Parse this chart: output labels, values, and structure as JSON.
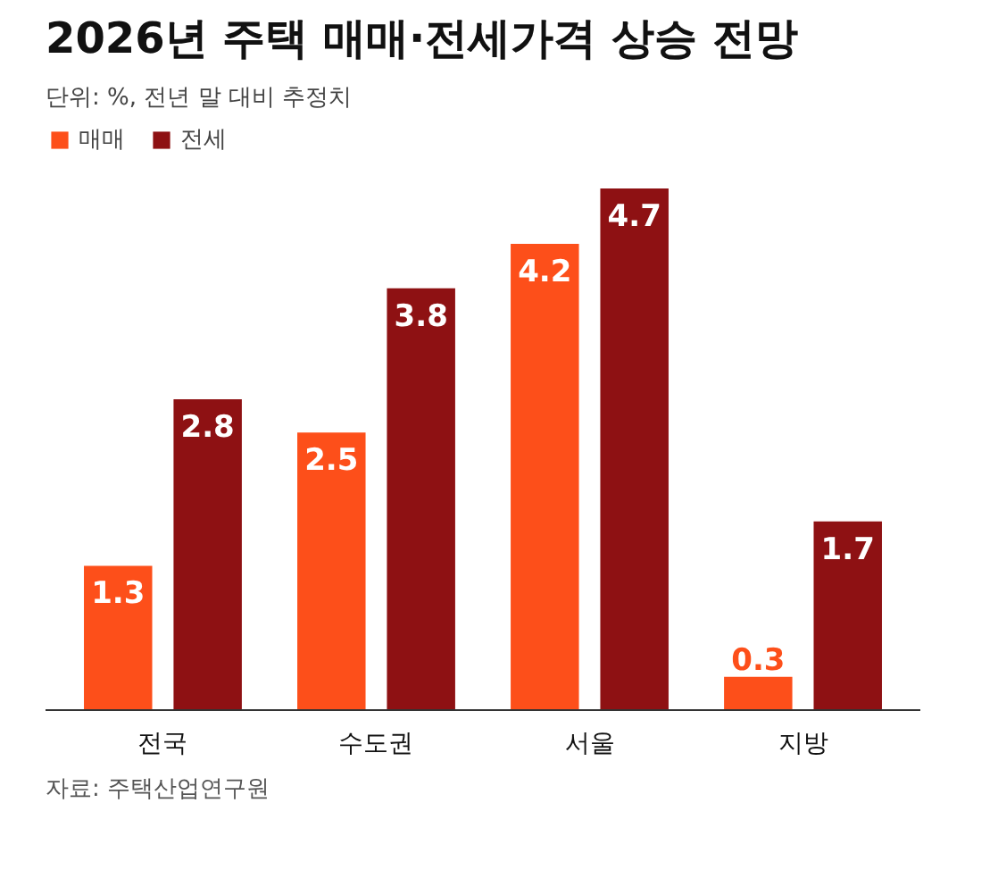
{
  "chart_data": {
    "type": "bar",
    "title": "2026년 주택 매매·전세가격 상승 전망",
    "subtitle": "단위: %, 전년 말 대비 추정치",
    "categories": [
      "전국",
      "수도권",
      "서울",
      "지방"
    ],
    "series": [
      {
        "name": "매매",
        "color": "#fd4f1a",
        "values": [
          1.3,
          2.5,
          4.2,
          0.3
        ]
      },
      {
        "name": "전세",
        "color": "#8e1113",
        "values": [
          2.8,
          3.8,
          4.7,
          1.7
        ]
      }
    ],
    "data_labels": true,
    "legend": "top left",
    "annotations": [
      "자료: 주택산업연구원"
    ]
  }
}
